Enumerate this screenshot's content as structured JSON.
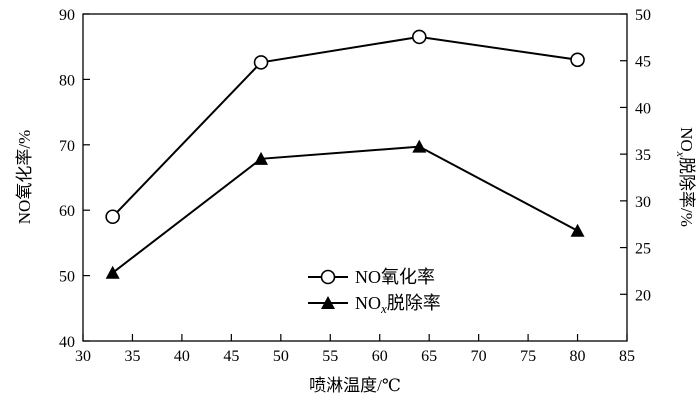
{
  "chart_data": {
    "type": "line",
    "title": "",
    "x": [
      33,
      48,
      64,
      80
    ],
    "xlabel": "喷淋温度/℃",
    "xlim": [
      30,
      85
    ],
    "xticks": [
      30,
      35,
      40,
      45,
      50,
      55,
      60,
      65,
      70,
      75,
      80,
      85
    ],
    "ylabel_left": "NO氧化率/%",
    "ylim_left": [
      40,
      90
    ],
    "yticks_left": [
      40,
      50,
      60,
      70,
      80,
      90
    ],
    "ylabel_right_main": "NO",
    "ylabel_right_sub": "x",
    "ylabel_right_rest": "脱除率/%",
    "ylim_right": [
      15,
      50
    ],
    "yticks_right": [
      20,
      25,
      30,
      35,
      40,
      45,
      50
    ],
    "grid": false,
    "legend_position": "bottom-center",
    "series": [
      {
        "name": "NO氧化率",
        "axis": "left",
        "marker": "circle-open",
        "color": "#000000",
        "values": [
          59,
          82.6,
          86.5,
          83
        ]
      },
      {
        "name_main": "NO",
        "name_sub": "x",
        "name_rest": "脱除率",
        "axis": "right",
        "marker": "triangle-filled",
        "color": "#000000",
        "values": [
          22.3,
          34.5,
          35.8,
          26.8
        ]
      }
    ]
  }
}
